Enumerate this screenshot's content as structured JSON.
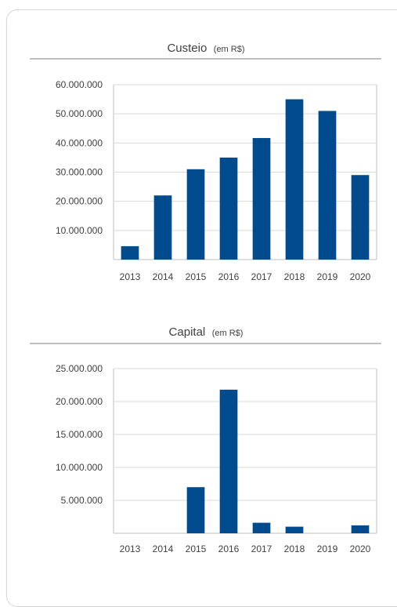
{
  "colors": {
    "bar": "#004b8d"
  },
  "chart_data": [
    {
      "type": "bar",
      "title": "Custeio",
      "title_unit": "(em R$)",
      "xlabel": "",
      "ylabel": "",
      "ylim": [
        0,
        60000000
      ],
      "y_ticks": [
        "10.000.000",
        "20.000.000",
        "30.000.000",
        "40.000.000",
        "50.000.000",
        "60.000.000"
      ],
      "y_tick_values": [
        10000000,
        20000000,
        30000000,
        40000000,
        50000000,
        60000000
      ],
      "categories": [
        "2013",
        "2014",
        "2015",
        "2016",
        "2017",
        "2018",
        "2019",
        "2020"
      ],
      "values": [
        4600000,
        22000000,
        31000000,
        35000000,
        41700000,
        55000000,
        51000000,
        29000000
      ],
      "grid": true
    },
    {
      "type": "bar",
      "title": "Capital",
      "title_unit": "(em R$)",
      "xlabel": "",
      "ylabel": "",
      "ylim": [
        0,
        25000000
      ],
      "y_ticks": [
        "5.000.000",
        "10.000.000",
        "15.000.000",
        "20.000.000",
        "25.000.000"
      ],
      "y_tick_values": [
        5000000,
        10000000,
        15000000,
        20000000,
        25000000
      ],
      "categories": [
        "2013",
        "2014",
        "2015",
        "2016",
        "2017",
        "2018",
        "2019",
        "2020"
      ],
      "values": [
        0,
        0,
        7000000,
        21800000,
        1600000,
        1000000,
        0,
        1200000
      ],
      "grid": true
    }
  ]
}
